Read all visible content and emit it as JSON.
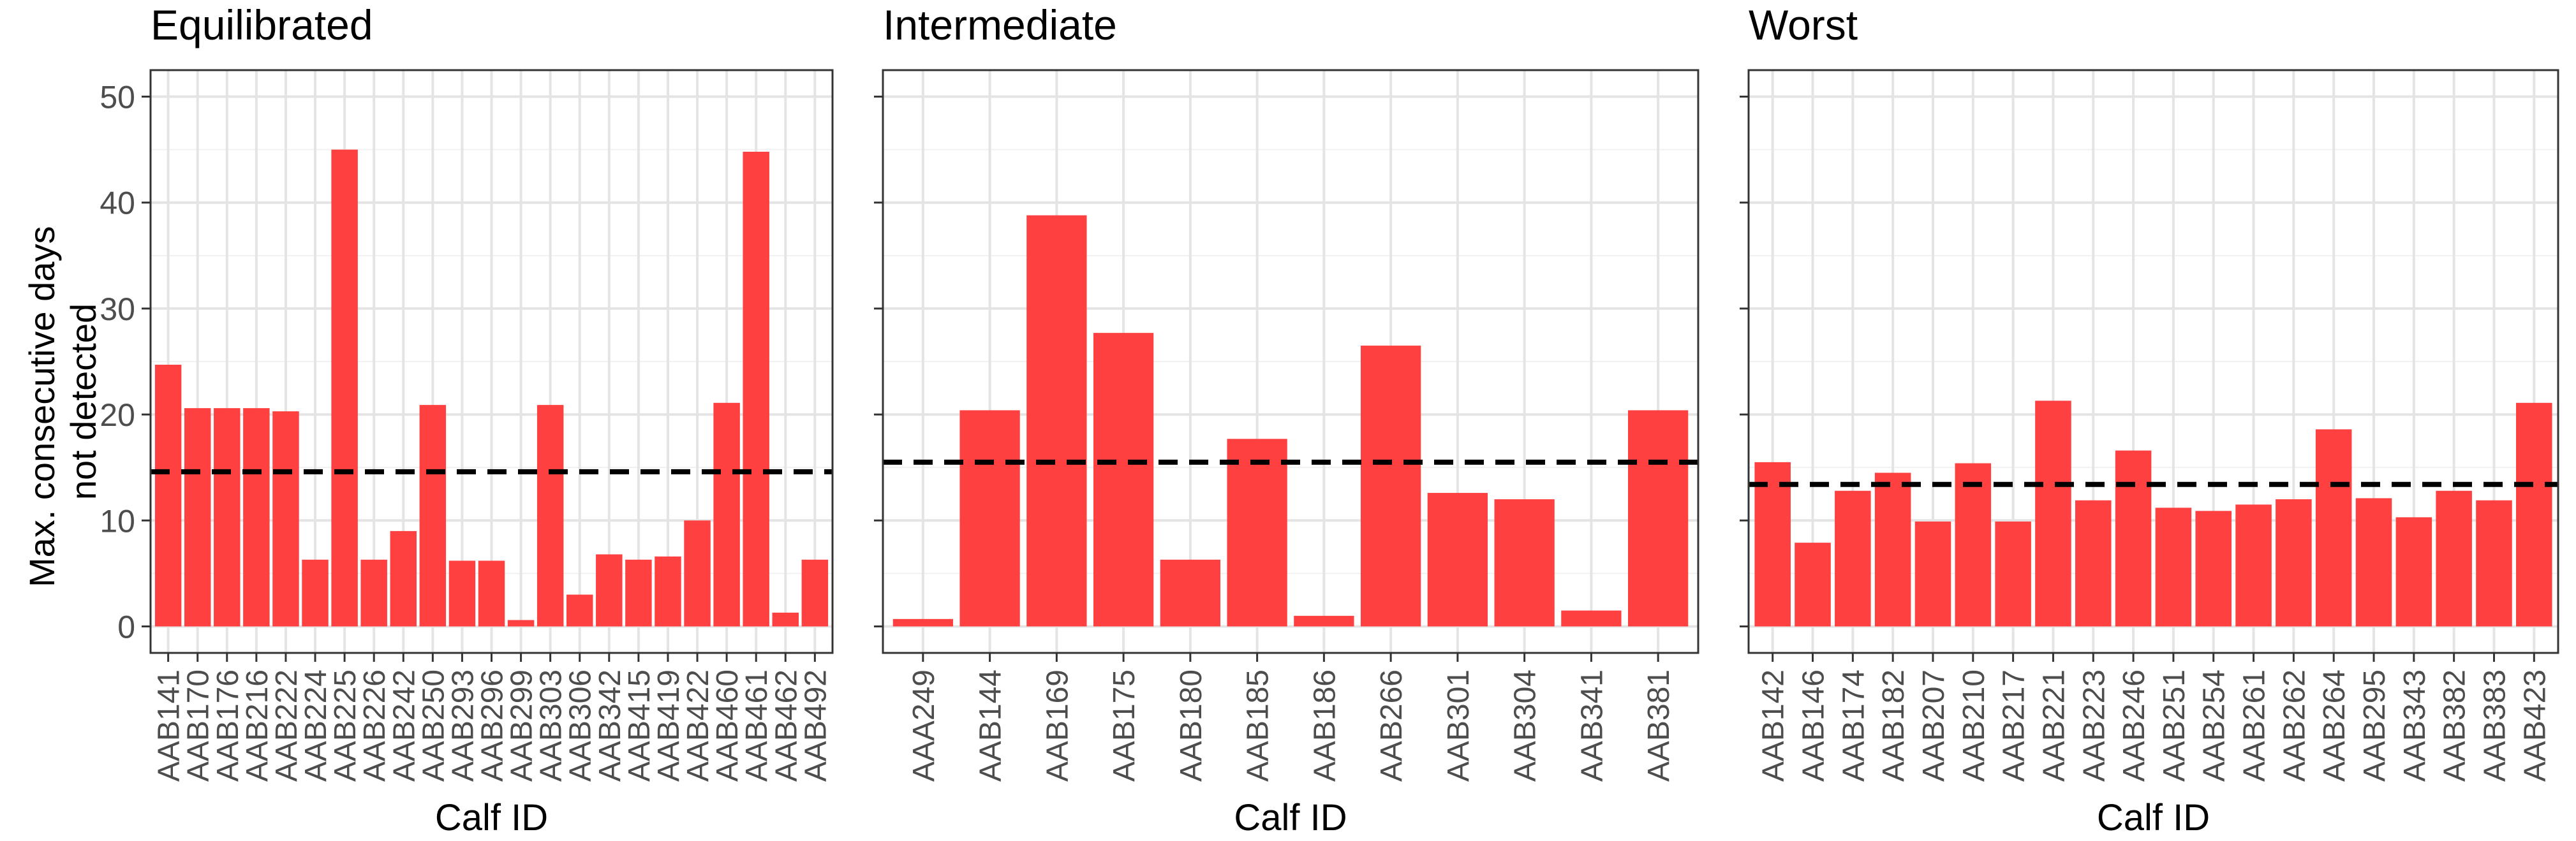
{
  "chart_data": {
    "type": "bar",
    "ylabel_lines": [
      "Max. consecutive days",
      "not detected"
    ],
    "xlabel": "Calf ID",
    "ylim": [
      -2.5,
      52.5
    ],
    "yticks": [
      0,
      10,
      20,
      30,
      40,
      50
    ],
    "grid": true,
    "bar_color": "#ff4040",
    "reference_line_style": "dashed",
    "panels": [
      {
        "title": "Equilibrated",
        "categories": [
          "AAB141",
          "AAB170",
          "AAB176",
          "AAB216",
          "AAB222",
          "AAB224",
          "AAB225",
          "AAB226",
          "AAB242",
          "AAB250",
          "AAB293",
          "AAB296",
          "AAB299",
          "AAB303",
          "AAB306",
          "AAB342",
          "AAB415",
          "AAB419",
          "AAB422",
          "AAB460",
          "AAB461",
          "AAB462",
          "AAB492"
        ],
        "values": [
          24.7,
          20.6,
          20.6,
          20.6,
          20.3,
          6.3,
          45.0,
          6.3,
          9.0,
          20.9,
          6.2,
          6.2,
          0.6,
          20.9,
          3.0,
          6.8,
          6.3,
          6.6,
          10.0,
          21.1,
          44.8,
          1.3,
          6.3
        ],
        "reference_line": 14.6
      },
      {
        "title": "Intermediate",
        "categories": [
          "AAA249",
          "AAB144",
          "AAB169",
          "AAB175",
          "AAB180",
          "AAB185",
          "AAB186",
          "AAB266",
          "AAB301",
          "AAB304",
          "AAB341",
          "AAB381"
        ],
        "values": [
          0.7,
          20.4,
          38.8,
          27.7,
          6.3,
          17.7,
          1.0,
          26.5,
          12.6,
          12.0,
          1.5,
          20.4
        ],
        "reference_line": 15.5
      },
      {
        "title": "Worst",
        "categories": [
          "AAB142",
          "AAB146",
          "AAB174",
          "AAB182",
          "AAB207",
          "AAB210",
          "AAB217",
          "AAB221",
          "AAB223",
          "AAB246",
          "AAB251",
          "AAB254",
          "AAB261",
          "AAB262",
          "AAB264",
          "AAB295",
          "AAB343",
          "AAB382",
          "AAB383",
          "AAB423"
        ],
        "values": [
          15.5,
          7.9,
          12.8,
          14.5,
          9.9,
          15.4,
          9.9,
          21.3,
          11.9,
          16.6,
          11.2,
          10.9,
          11.5,
          12.0,
          18.6,
          12.1,
          10.3,
          12.8,
          11.9,
          21.1
        ],
        "reference_line": 13.4
      }
    ]
  }
}
